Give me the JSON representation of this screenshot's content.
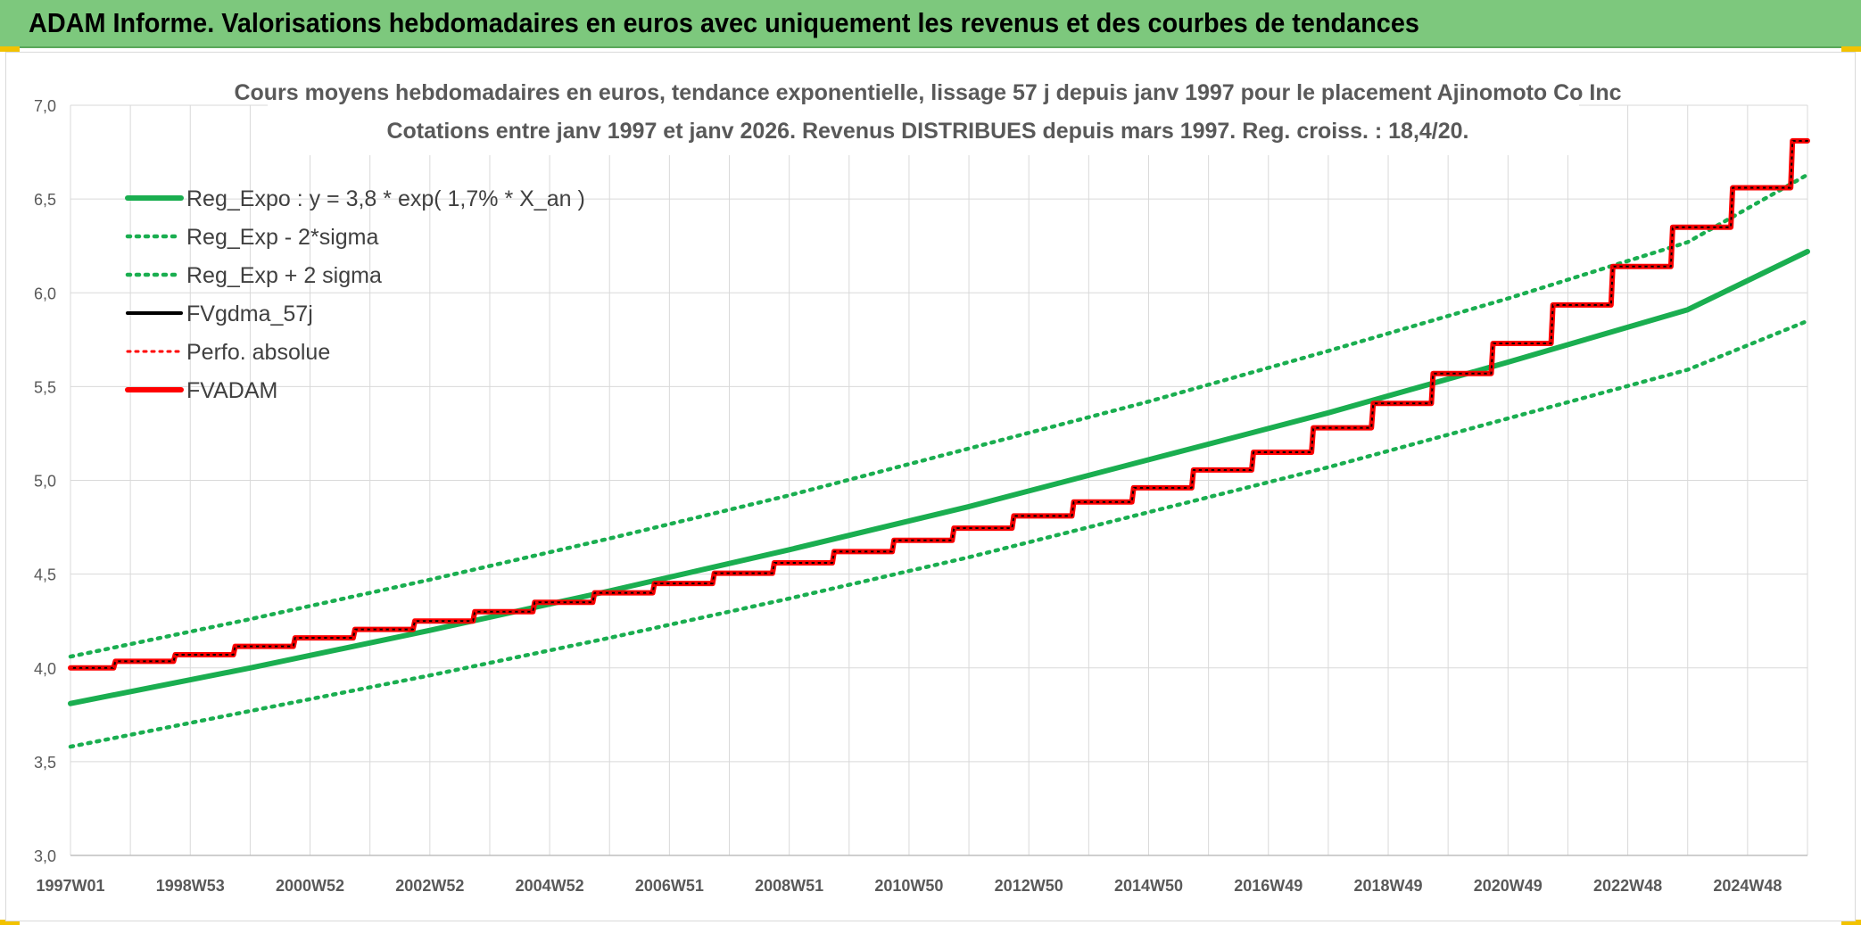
{
  "banner": {
    "title": "ADAM Informe. Valorisations hebdomadaires en euros avec uniquement les revenus et des courbes de tendances"
  },
  "colors": {
    "banner": "#7dc87d",
    "reg": "#1aae50",
    "adam": "#ff0000",
    "fvgdma": "#000000",
    "perfo": "#ff0000",
    "grid": "#d9d9d9"
  },
  "chart_data": {
    "type": "line",
    "title": "Cours moyens hebdomadaires en euros, tendance exponentielle, lissage 57 j depuis janv 1997 pour le placement Ajinomoto Co Inc",
    "subtitle": "Cotations entre janv 1997 et janv 2026. Revenus DISTRIBUES depuis mars 1997. Reg. croiss. : 18,4/20.",
    "xlabel": "",
    "ylabel": "",
    "ylim": [
      3.0,
      7.0
    ],
    "xlim": [
      1997.0,
      2026.0
    ],
    "yticks": [
      "3,0",
      "3,5",
      "4,0",
      "4,5",
      "5,0",
      "5,5",
      "6,0",
      "6,5",
      "7,0"
    ],
    "xticks": [
      {
        "label": "1997W01",
        "x": 1997.0
      },
      {
        "label": "1998W53",
        "x": 1999.0
      },
      {
        "label": "2000W52",
        "x": 2001.0
      },
      {
        "label": "2002W52",
        "x": 2003.0
      },
      {
        "label": "2004W52",
        "x": 2005.0
      },
      {
        "label": "2006W51",
        "x": 2007.0
      },
      {
        "label": "2008W51",
        "x": 2009.0
      },
      {
        "label": "2010W50",
        "x": 2011.0
      },
      {
        "label": "2012W50",
        "x": 2013.0
      },
      {
        "label": "2014W50",
        "x": 2015.0
      },
      {
        "label": "2016W49",
        "x": 2017.0
      },
      {
        "label": "2018W49",
        "x": 2019.0
      },
      {
        "label": "2020W49",
        "x": 2021.0
      },
      {
        "label": "2022W48",
        "x": 2023.0
      },
      {
        "label": "2024W48",
        "x": 2025.0
      }
    ],
    "grid": true,
    "legend_position": "top-left",
    "series": [
      {
        "name": "Reg_Expo : y = 3,8 * exp( 1,7% *  X_an )",
        "style": "solid-thick",
        "color": "#1aae50",
        "x": [
          1997,
          2000,
          2003,
          2006,
          2009,
          2012,
          2015,
          2018,
          2021,
          2024,
          2026
        ],
        "y": [
          3.81,
          4.0,
          4.2,
          4.41,
          4.63,
          4.86,
          5.11,
          5.36,
          5.63,
          5.91,
          6.22
        ]
      },
      {
        "name": "Reg_Exp - 2*sigma",
        "style": "dotted",
        "color": "#1aae50",
        "x": [
          1997,
          2000,
          2003,
          2006,
          2009,
          2012,
          2015,
          2018,
          2021,
          2024,
          2026
        ],
        "y": [
          3.58,
          3.77,
          3.96,
          4.16,
          4.37,
          4.59,
          4.83,
          5.07,
          5.33,
          5.59,
          5.85
        ]
      },
      {
        "name": "Reg_Exp + 2 sigma",
        "style": "dotted",
        "color": "#1aae50",
        "x": [
          1997,
          2000,
          2003,
          2006,
          2009,
          2012,
          2015,
          2018,
          2021,
          2024,
          2026
        ],
        "y": [
          4.06,
          4.26,
          4.47,
          4.69,
          4.92,
          5.17,
          5.42,
          5.69,
          5.97,
          6.27,
          6.63
        ]
      },
      {
        "name": "FVgdma_57j",
        "style": "solid",
        "color": "#000000",
        "x": [
          1997,
          1999,
          2001,
          2003,
          2005,
          2007,
          2009,
          2011,
          2013,
          2015,
          2017,
          2019,
          2021,
          2023,
          2025,
          2026
        ],
        "y": [
          4.0,
          4.07,
          4.16,
          4.25,
          4.35,
          4.45,
          4.56,
          4.68,
          4.81,
          4.96,
          5.15,
          5.41,
          5.73,
          6.14,
          6.56,
          6.81
        ]
      },
      {
        "name": "Perfo. absolue",
        "style": "dotted",
        "color": "#ff0000",
        "x": [
          1997,
          1999,
          2001,
          2003,
          2005,
          2007,
          2009,
          2011,
          2013,
          2015,
          2017,
          2019,
          2021,
          2023,
          2025,
          2026
        ],
        "y": [
          4.0,
          4.07,
          4.16,
          4.25,
          4.35,
          4.45,
          4.56,
          4.68,
          4.81,
          4.96,
          5.15,
          5.41,
          5.73,
          6.14,
          6.56,
          6.81
        ]
      },
      {
        "name": "FVADAM",
        "style": "step-thick",
        "color": "#ff0000",
        "x": [
          1997,
          1999,
          2001,
          2003,
          2005,
          2007,
          2009,
          2011,
          2013,
          2015,
          2017,
          2019,
          2021,
          2023,
          2025,
          2026
        ],
        "y": [
          4.0,
          4.07,
          4.16,
          4.25,
          4.35,
          4.45,
          4.56,
          4.68,
          4.81,
          4.96,
          5.15,
          5.41,
          5.73,
          6.14,
          6.56,
          6.81
        ]
      }
    ]
  }
}
